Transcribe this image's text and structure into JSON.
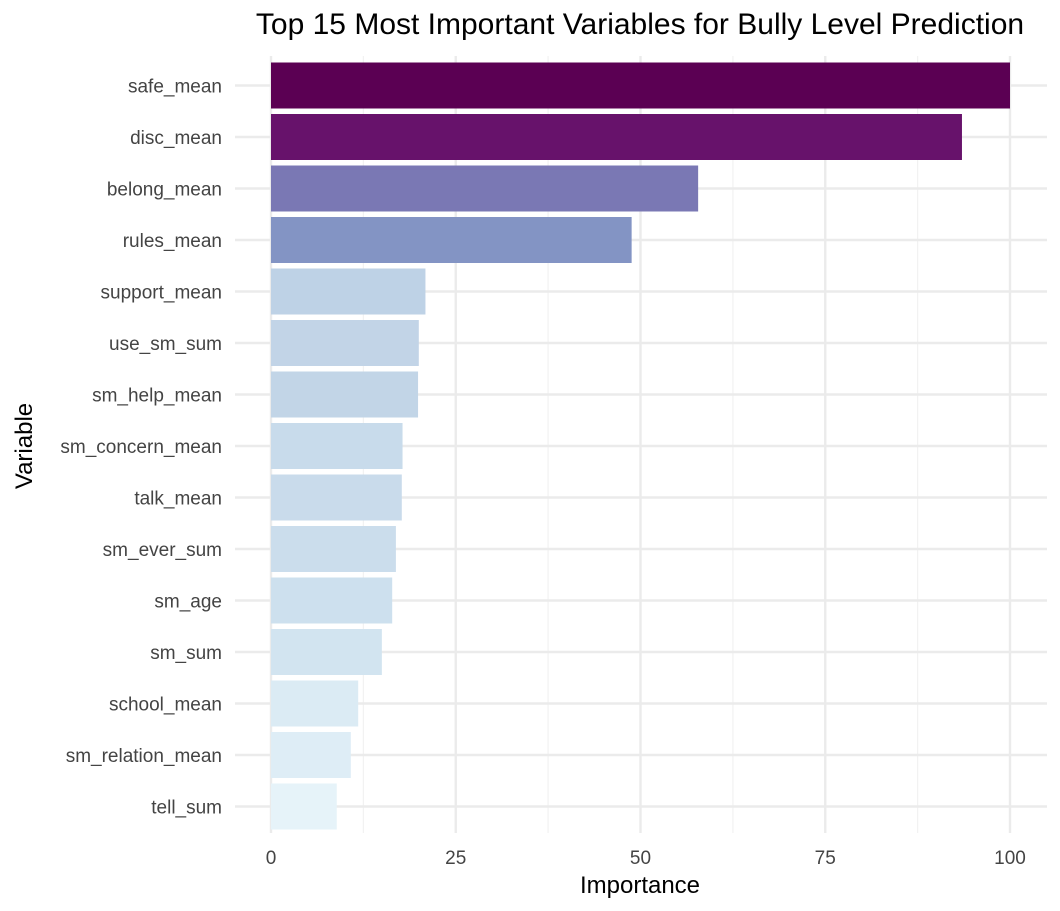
{
  "chart_data": {
    "type": "bar",
    "orientation": "horizontal",
    "title": "Top 15 Most Important Variables for Bully Level Prediction",
    "xlabel": "Importance",
    "ylabel": "Variable",
    "xlim": [
      0,
      100
    ],
    "xticks": [
      "0",
      "25",
      "50",
      "75",
      "100"
    ],
    "grid": true,
    "legend": "none",
    "color_scale": [
      "#e8f4f9",
      "#5b0053"
    ],
    "bars": [
      {
        "category": "safe_mean",
        "value": 100,
        "color": "#5b0053"
      },
      {
        "category": "disc_mean",
        "value": 93.5,
        "color": "#67126b"
      },
      {
        "category": "belong_mean",
        "value": 57.8,
        "color": "#7a78b4"
      },
      {
        "category": "rules_mean",
        "value": 48.8,
        "color": "#8394c4"
      },
      {
        "category": "support_mean",
        "value": 20.9,
        "color": "#bed2e6"
      },
      {
        "category": "use_sm_sum",
        "value": 20.0,
        "color": "#c2d4e7"
      },
      {
        "category": "sm_help_mean",
        "value": 19.9,
        "color": "#c2d5e7"
      },
      {
        "category": "sm_concern_mean",
        "value": 17.8,
        "color": "#c8dbeb"
      },
      {
        "category": "talk_mean",
        "value": 17.7,
        "color": "#c9dbeb"
      },
      {
        "category": "sm_ever_sum",
        "value": 16.9,
        "color": "#cbddec"
      },
      {
        "category": "sm_age",
        "value": 16.4,
        "color": "#cde0ee"
      },
      {
        "category": "sm_sum",
        "value": 15.0,
        "color": "#d2e4f0"
      },
      {
        "category": "school_mean",
        "value": 11.8,
        "color": "#dbebf4"
      },
      {
        "category": "sm_relation_mean",
        "value": 10.8,
        "color": "#deedf6"
      },
      {
        "category": "tell_sum",
        "value": 8.9,
        "color": "#e6f3f9"
      }
    ]
  }
}
